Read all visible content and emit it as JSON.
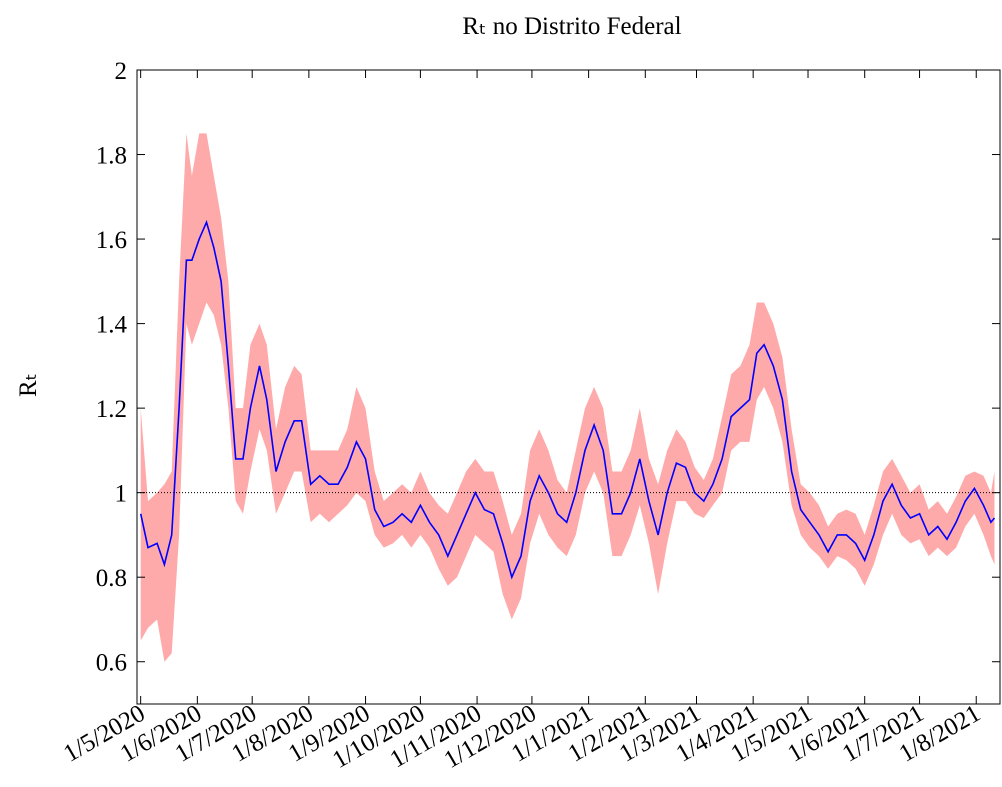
{
  "chart_data": {
    "type": "line",
    "title": "Rₜ no Distrito Federal",
    "ylabel": "Rₜ",
    "x": [
      "1/5/2020",
      "5/5/2020",
      "10/5/2020",
      "14/5/2020",
      "18/5/2020",
      "22/5/2020",
      "26/5/2020",
      "29/5/2020",
      "2/6/2020",
      "6/6/2020",
      "10/6/2020",
      "14/6/2020",
      "18/6/2020",
      "22/6/2020",
      "26/6/2020",
      "30/6/2020",
      "5/7/2020",
      "9/7/2020",
      "14/7/2020",
      "19/7/2020",
      "24/7/2020",
      "28/7/2020",
      "2/8/2020",
      "7/8/2020",
      "12/8/2020",
      "17/8/2020",
      "22/8/2020",
      "27/8/2020",
      "1/9/2020",
      "6/9/2020",
      "11/9/2020",
      "16/9/2020",
      "21/9/2020",
      "26/9/2020",
      "1/10/2020",
      "6/10/2020",
      "11/10/2020",
      "16/10/2020",
      "21/10/2020",
      "26/10/2020",
      "31/10/2020",
      "5/11/2020",
      "10/11/2020",
      "15/11/2020",
      "20/11/2020",
      "25/11/2020",
      "30/11/2020",
      "5/12/2020",
      "10/12/2020",
      "15/12/2020",
      "20/12/2020",
      "25/12/2020",
      "30/12/2020",
      "4/1/2021",
      "9/1/2021",
      "14/1/2021",
      "19/1/2021",
      "24/1/2021",
      "29/1/2021",
      "3/2/2021",
      "8/2/2021",
      "13/2/2021",
      "18/2/2021",
      "23/2/2021",
      "28/2/2021",
      "5/3/2021",
      "10/3/2021",
      "15/3/2021",
      "20/3/2021",
      "25/3/2021",
      "30/3/2021",
      "3/4/2021",
      "7/4/2021",
      "12/4/2021",
      "17/4/2021",
      "22/4/2021",
      "27/4/2021",
      "2/5/2021",
      "7/5/2021",
      "12/5/2021",
      "17/5/2021",
      "22/5/2021",
      "27/5/2021",
      "1/6/2021",
      "6/6/2021",
      "11/6/2021",
      "16/6/2021",
      "21/6/2021",
      "26/6/2021",
      "1/7/2021",
      "6/7/2021",
      "11/7/2021",
      "16/7/2021",
      "21/7/2021",
      "26/7/2021",
      "31/7/2021",
      "5/8/2021",
      "9/8/2021",
      "11/8/2021"
    ],
    "series": [
      {
        "color": "#0000ff",
        "values": [
          0.95,
          0.87,
          0.88,
          0.83,
          0.9,
          1.2,
          1.55,
          1.55,
          1.6,
          1.64,
          1.58,
          1.5,
          1.3,
          1.08,
          1.08,
          1.2,
          1.3,
          1.22,
          1.05,
          1.12,
          1.17,
          1.17,
          1.02,
          1.04,
          1.02,
          1.02,
          1.06,
          1.12,
          1.08,
          0.96,
          0.92,
          0.93,
          0.95,
          0.93,
          0.97,
          0.93,
          0.9,
          0.85,
          0.9,
          0.95,
          1.0,
          0.96,
          0.95,
          0.88,
          0.8,
          0.85,
          0.98,
          1.04,
          1.0,
          0.95,
          0.93,
          1.0,
          1.1,
          1.16,
          1.1,
          0.95,
          0.95,
          1.0,
          1.08,
          0.98,
          0.9,
          1.0,
          1.07,
          1.06,
          1.0,
          0.98,
          1.02,
          1.08,
          1.18,
          1.2,
          1.22,
          1.33,
          1.35,
          1.3,
          1.22,
          1.05,
          0.96,
          0.93,
          0.9,
          0.86,
          0.9,
          0.9,
          0.88,
          0.84,
          0.9,
          0.98,
          1.02,
          0.97,
          0.94,
          0.95,
          0.9,
          0.92,
          0.89,
          0.93,
          0.98,
          1.01,
          0.97,
          0.93,
          0.94
        ]
      }
    ],
    "band": {
      "color": "#ffaaaa",
      "lower": [
        0.65,
        0.68,
        0.7,
        0.6,
        0.62,
        0.9,
        1.4,
        1.35,
        1.4,
        1.45,
        1.42,
        1.35,
        1.2,
        0.98,
        0.95,
        1.05,
        1.15,
        1.1,
        0.95,
        1.0,
        1.05,
        1.05,
        0.93,
        0.95,
        0.93,
        0.95,
        0.97,
        1.0,
        0.98,
        0.9,
        0.87,
        0.88,
        0.9,
        0.87,
        0.9,
        0.87,
        0.82,
        0.78,
        0.8,
        0.85,
        0.9,
        0.88,
        0.86,
        0.76,
        0.7,
        0.75,
        0.88,
        0.95,
        0.9,
        0.87,
        0.85,
        0.9,
        1.0,
        1.05,
        1.0,
        0.85,
        0.85,
        0.9,
        0.97,
        0.88,
        0.76,
        0.88,
        0.98,
        0.98,
        0.95,
        0.94,
        0.97,
        1.0,
        1.1,
        1.12,
        1.12,
        1.22,
        1.25,
        1.2,
        1.12,
        0.97,
        0.9,
        0.87,
        0.85,
        0.82,
        0.85,
        0.84,
        0.82,
        0.78,
        0.83,
        0.9,
        0.95,
        0.9,
        0.88,
        0.89,
        0.85,
        0.87,
        0.85,
        0.87,
        0.92,
        0.95,
        0.9,
        0.85,
        0.83
      ],
      "upper": [
        1.2,
        0.98,
        1.0,
        1.02,
        1.05,
        1.5,
        1.85,
        1.75,
        1.85,
        1.85,
        1.75,
        1.65,
        1.5,
        1.2,
        1.2,
        1.35,
        1.4,
        1.35,
        1.15,
        1.25,
        1.3,
        1.28,
        1.1,
        1.1,
        1.1,
        1.1,
        1.15,
        1.25,
        1.2,
        1.05,
        0.98,
        1.0,
        1.02,
        1.0,
        1.05,
        1.0,
        0.97,
        0.95,
        1.0,
        1.05,
        1.08,
        1.05,
        1.05,
        0.98,
        0.9,
        0.95,
        1.1,
        1.15,
        1.1,
        1.03,
        1.0,
        1.1,
        1.2,
        1.25,
        1.2,
        1.05,
        1.05,
        1.1,
        1.2,
        1.08,
        1.02,
        1.1,
        1.15,
        1.12,
        1.06,
        1.03,
        1.08,
        1.18,
        1.28,
        1.3,
        1.35,
        1.45,
        1.45,
        1.4,
        1.32,
        1.15,
        1.02,
        1.0,
        0.97,
        0.92,
        0.95,
        0.96,
        0.95,
        0.9,
        0.97,
        1.05,
        1.08,
        1.04,
        1.0,
        1.02,
        0.96,
        0.98,
        0.95,
        0.99,
        1.04,
        1.05,
        1.04,
        1.0,
        1.05
      ]
    },
    "hline": 1,
    "xlim": [
      "29/4/2020",
      "14/8/2021"
    ],
    "xticks": [
      "1/5/2020",
      "1/6/2020",
      "1/7/2020",
      "1/8/2020",
      "1/9/2020",
      "1/10/2020",
      "1/11/2020",
      "1/12/2020",
      "1/1/2021",
      "1/2/2021",
      "1/3/2021",
      "1/4/2021",
      "1/5/2021",
      "1/6/2021",
      "1/7/2021",
      "1/8/2021"
    ],
    "ylim": [
      0.5,
      2
    ],
    "yticks": [
      0.6,
      0.8,
      1,
      1.2,
      1.4,
      1.6,
      1.8,
      2
    ]
  }
}
